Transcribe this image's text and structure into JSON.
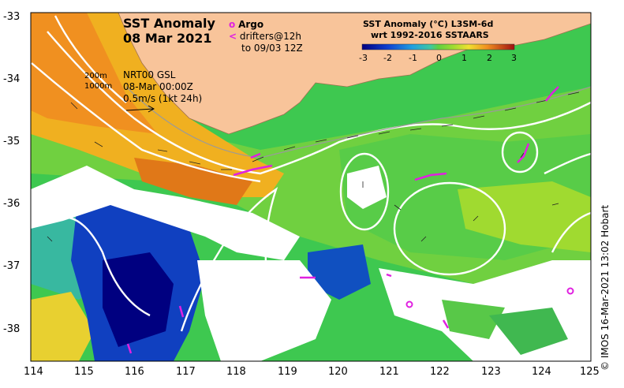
{
  "title": {
    "line1": "SST Anomaly",
    "line2": "08 Mar 2021"
  },
  "argo_legend": {
    "argo_symbol": "o",
    "argo_label": "Argo",
    "drifter_symbol": "<",
    "drifter_label": "drifters@12h",
    "drifter_time": "to 09/03 12Z"
  },
  "colorbar": {
    "title_line1": "SST Anomaly (°C) L3SM-6d",
    "title_line2": "wrt 1992-2016 SSTAARS",
    "ticks": [
      "-3",
      "-2",
      "-1",
      "0",
      "1",
      "2",
      "3"
    ]
  },
  "info": {
    "contour1": "200m",
    "contour2": "1000m",
    "product": "NRT00 GSL",
    "valid_time": "08-Mar 00:00Z",
    "scale": "0.5m/s (1kt 24h)"
  },
  "axes": {
    "y_ticks": [
      "-33",
      "-34",
      "-35",
      "-36",
      "-37",
      "-38"
    ],
    "x_ticks": [
      "114",
      "115",
      "116",
      "117",
      "118",
      "119",
      "120",
      "121",
      "122",
      "123",
      "124",
      "125"
    ]
  },
  "credit": "© IMOS 16-Mar-2021 13:02 Hobart",
  "colors": {
    "land": "#f8c49a",
    "argo": "#e020e0",
    "contour": "#ffffff"
  }
}
